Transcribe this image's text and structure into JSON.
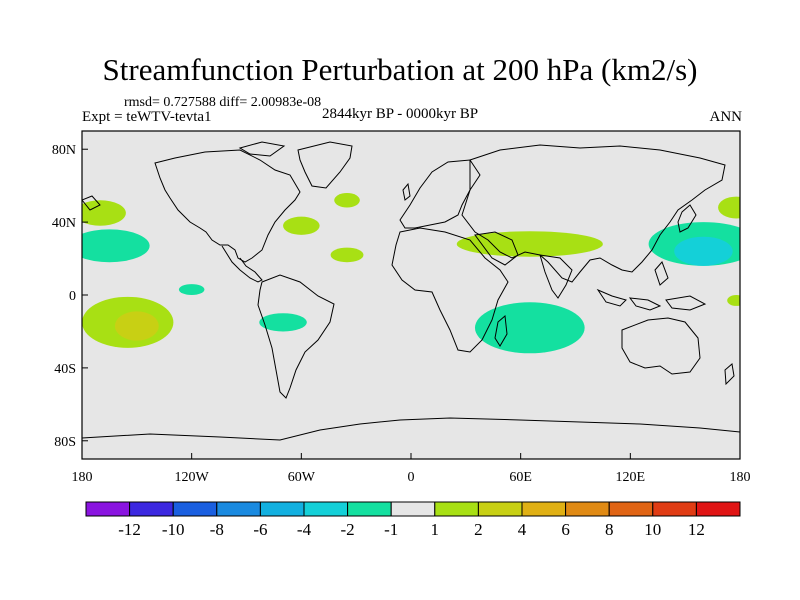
{
  "title": "Streamfunction Perturbation at 200 hPa (km2/s)",
  "stats_text": "rmsd= 0.727588 diff= 2.00983e-08",
  "experiment_text": "Expt = teWTV-tevta1",
  "period_text": "2844kyr BP - 0000kyr BP",
  "season_text": "ANN",
  "lat_labels": [
    "80N",
    "40N",
    "0",
    "40S",
    "80S"
  ],
  "lon_labels": [
    "180",
    "120W",
    "60W",
    "0",
    "60E",
    "120E",
    "180"
  ],
  "colorbar": {
    "labels": [
      "-12",
      "-10",
      "-8",
      "-6",
      "-4",
      "-2",
      "-1",
      "1",
      "2",
      "4",
      "6",
      "8",
      "10",
      "12"
    ],
    "colors": [
      "#8a14e0",
      "#3c28e0",
      "#1a5fe0",
      "#1a8ae0",
      "#12b0e0",
      "#14d0d8",
      "#14e0a0",
      "#e6e6e6",
      "#a8e014",
      "#c8d014",
      "#e0b014",
      "#e08a14",
      "#e06414",
      "#e03c14",
      "#e01414"
    ]
  },
  "chart_data": {
    "type": "map",
    "title": "Streamfunction Perturbation at 200 hPa (km2/s)",
    "variable": "Streamfunction Perturbation at 200 hPa",
    "units": "km2/s",
    "period": "2844kyr BP - 0000kyr BP",
    "season": "ANN",
    "lon_range": [
      -180,
      180
    ],
    "lat_range": [
      -90,
      90
    ],
    "contour_levels": [
      -12,
      -10,
      -8,
      -6,
      -4,
      -2,
      -1,
      1,
      2,
      4,
      6,
      8,
      10,
      12
    ],
    "anomaly_regions": [
      {
        "lon": -170,
        "lat": 45,
        "rx": 14,
        "ry": 7,
        "level": 1.5
      },
      {
        "lon": -165,
        "lat": 27,
        "rx": 22,
        "ry": 9,
        "level": -1.5
      },
      {
        "lon": -60,
        "lat": 38,
        "rx": 10,
        "ry": 5,
        "level": 1.5
      },
      {
        "lon": -35,
        "lat": 52,
        "rx": 7,
        "ry": 4,
        "level": 1.5
      },
      {
        "lon": -35,
        "lat": 22,
        "rx": 9,
        "ry": 4,
        "level": 1.5
      },
      {
        "lon": -120,
        "lat": 3,
        "rx": 7,
        "ry": 3,
        "level": -1.5
      },
      {
        "lon": -155,
        "lat": -15,
        "rx": 25,
        "ry": 14,
        "level": 1.5
      },
      {
        "lon": -150,
        "lat": -17,
        "rx": 12,
        "ry": 8,
        "level": 3
      },
      {
        "lon": -70,
        "lat": -15,
        "rx": 13,
        "ry": 5,
        "level": -1.5
      },
      {
        "lon": 65,
        "lat": 28,
        "rx": 40,
        "ry": 7,
        "level": 1.5
      },
      {
        "lon": 65,
        "lat": -18,
        "rx": 30,
        "ry": 14,
        "level": -1.5
      },
      {
        "lon": 160,
        "lat": 28,
        "rx": 30,
        "ry": 12,
        "level": -1.5
      },
      {
        "lon": 160,
        "lat": 24,
        "rx": 16,
        "ry": 8,
        "level": -3
      },
      {
        "lon": 178,
        "lat": 48,
        "rx": 10,
        "ry": 6,
        "level": 1.5
      },
      {
        "lon": 178,
        "lat": -3,
        "rx": 5,
        "ry": 3,
        "level": 1.5
      }
    ]
  }
}
